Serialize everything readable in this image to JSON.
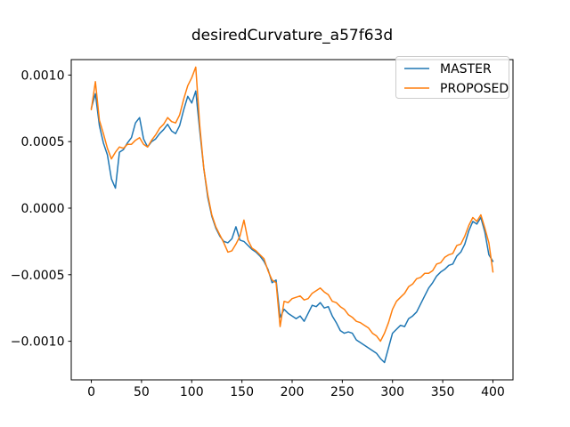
{
  "chart_data": {
    "type": "line",
    "title": "desiredCurvature_a57f63d",
    "xlabel": "",
    "ylabel": "",
    "grid": false,
    "xlim": [
      -20,
      420
    ],
    "ylim": [
      -0.00129,
      0.001116
    ],
    "x_ticks": {
      "values": [
        0,
        50,
        100,
        150,
        200,
        250,
        300,
        350,
        400
      ],
      "labels": [
        "0",
        "50",
        "100",
        "150",
        "200",
        "250",
        "300",
        "350",
        "400"
      ]
    },
    "y_ticks": {
      "values": [
        0.001,
        0.0005,
        0.0,
        -0.0005,
        -0.001
      ],
      "labels": [
        "0.0010",
        "0.0005",
        "0.0000",
        "−0.0005",
        "−0.0010"
      ]
    },
    "legend": {
      "position": "upper right",
      "entries": [
        "MASTER",
        "PROPOSED"
      ]
    },
    "x_start": 0,
    "x_step": 4,
    "series": [
      {
        "name": "MASTER",
        "color": "#1f77b4",
        "values": [
          0.00075,
          0.00086,
          0.00062,
          0.00049,
          0.0004,
          0.00022,
          0.00015,
          0.00042,
          0.00044,
          0.00049,
          0.00053,
          0.00064,
          0.00068,
          0.00052,
          0.00046,
          0.0005,
          0.00052,
          0.00056,
          0.00059,
          0.00063,
          0.00058,
          0.00056,
          0.00062,
          0.00074,
          0.00084,
          0.00079,
          0.00088,
          0.00058,
          0.0003,
          8e-05,
          -6e-05,
          -0.00015,
          -0.00021,
          -0.00025,
          -0.00026,
          -0.00023,
          -0.00014,
          -0.00024,
          -0.00025,
          -0.00028,
          -0.00031,
          -0.00033,
          -0.00036,
          -0.0004,
          -0.00046,
          -0.00056,
          -0.00054,
          -0.00082,
          -0.00076,
          -0.00079,
          -0.00081,
          -0.00083,
          -0.00081,
          -0.00085,
          -0.00079,
          -0.00073,
          -0.00074,
          -0.00071,
          -0.00075,
          -0.00074,
          -0.00081,
          -0.00086,
          -0.00092,
          -0.00094,
          -0.00093,
          -0.00094,
          -0.00099,
          -0.00101,
          -0.00103,
          -0.00105,
          -0.00107,
          -0.00109,
          -0.00113,
          -0.00116,
          -0.00105,
          -0.00094,
          -0.00091,
          -0.00088,
          -0.00089,
          -0.00083,
          -0.00081,
          -0.00078,
          -0.00072,
          -0.00066,
          -0.0006,
          -0.00056,
          -0.00051,
          -0.00048,
          -0.00046,
          -0.00043,
          -0.00042,
          -0.00036,
          -0.00033,
          -0.00027,
          -0.00017,
          -0.0001,
          -0.00012,
          -7e-05,
          -0.00018,
          -0.00035,
          -0.0004
        ]
      },
      {
        "name": "PROPOSED",
        "color": "#ff7f0e",
        "values": [
          0.00074,
          0.00095,
          0.00066,
          0.00056,
          0.00045,
          0.00037,
          0.00042,
          0.00046,
          0.00045,
          0.00048,
          0.00048,
          0.00051,
          0.00053,
          0.00048,
          0.00046,
          0.00051,
          0.00055,
          0.0006,
          0.00063,
          0.00068,
          0.00065,
          0.00064,
          0.0007,
          0.00082,
          0.00092,
          0.00098,
          0.00106,
          0.00062,
          0.0003,
          0.0001,
          -5e-05,
          -0.00014,
          -0.0002,
          -0.00026,
          -0.00033,
          -0.00032,
          -0.00027,
          -0.00021,
          -9e-05,
          -0.00024,
          -0.0003,
          -0.00032,
          -0.00035,
          -0.00038,
          -0.00047,
          -0.00054,
          -0.00056,
          -0.00089,
          -0.0007,
          -0.00071,
          -0.00068,
          -0.00067,
          -0.00066,
          -0.00069,
          -0.00068,
          -0.00064,
          -0.00062,
          -0.0006,
          -0.00063,
          -0.00065,
          -0.0007,
          -0.00071,
          -0.00074,
          -0.00076,
          -0.0008,
          -0.00082,
          -0.00085,
          -0.00086,
          -0.00088,
          -0.0009,
          -0.00094,
          -0.00096,
          -0.001,
          -0.00094,
          -0.00086,
          -0.00076,
          -0.0007,
          -0.00067,
          -0.00064,
          -0.00059,
          -0.00057,
          -0.00053,
          -0.00052,
          -0.00049,
          -0.00049,
          -0.00047,
          -0.00042,
          -0.00041,
          -0.00037,
          -0.00035,
          -0.00034,
          -0.00028,
          -0.00027,
          -0.00021,
          -0.00013,
          -7e-05,
          -0.0001,
          -5e-05,
          -0.00015,
          -0.00026,
          -0.00048
        ]
      }
    ]
  }
}
